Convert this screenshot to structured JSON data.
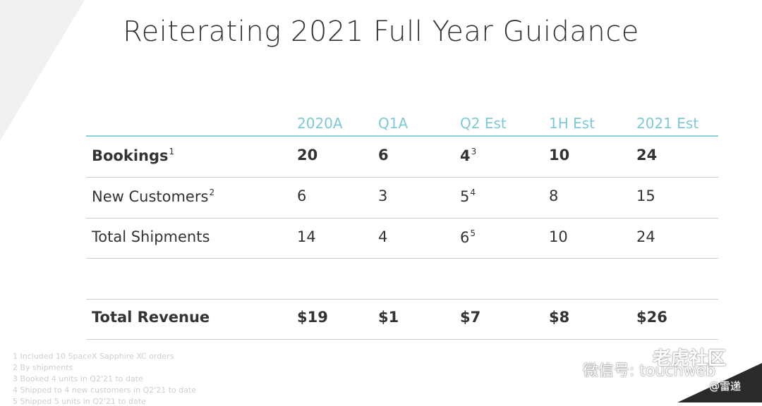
{
  "title": "Reiterating 2021 Full Year Guidance",
  "table": {
    "header": [
      "2020A",
      "Q1A",
      "Q2 Est",
      "1H Est",
      "2021 Est"
    ],
    "rows": [
      {
        "label": "Bookings",
        "label_note": "1",
        "bold": true,
        "cells": [
          {
            "text": "20"
          },
          {
            "text": "6"
          },
          {
            "text": "4",
            "note": "3"
          },
          {
            "text": "10"
          },
          {
            "text": "24"
          }
        ]
      },
      {
        "label": "New Customers",
        "label_note": "2",
        "bold": false,
        "cells": [
          {
            "text": "6"
          },
          {
            "text": "3"
          },
          {
            "text": "5",
            "note": "4"
          },
          {
            "text": "8"
          },
          {
            "text": "15"
          }
        ]
      },
      {
        "label": "Total Shipments",
        "bold": false,
        "cells": [
          {
            "text": "14"
          },
          {
            "text": "4"
          },
          {
            "text": "6",
            "note": "5"
          },
          {
            "text": "10"
          },
          {
            "text": "24"
          }
        ]
      },
      {
        "label": "Total Revenue",
        "bold": true,
        "cells": [
          {
            "text": "$19"
          },
          {
            "text": "$1"
          },
          {
            "text": "$7"
          },
          {
            "text": "$8"
          },
          {
            "text": "$26"
          }
        ]
      }
    ]
  },
  "footnotes": [
    "1 Included 10 SpaceX Sapphire XC orders",
    "2 By shipments",
    "3 Booked 4 units in Q2'21 to date",
    "4 Shipped to 4 new customers in Q2'21 to date",
    "5 Shipped 5 units in Q2'21 to date"
  ],
  "watermark": {
    "wechat": "微信号: touchweb",
    "community": "老虎社区",
    "author": "@雷递"
  }
}
